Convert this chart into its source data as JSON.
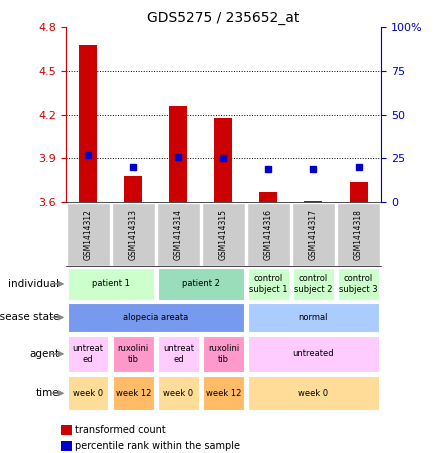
{
  "title": "GDS5275 / 235652_at",
  "samples": [
    "GSM1414312",
    "GSM1414313",
    "GSM1414314",
    "GSM1414315",
    "GSM1414316",
    "GSM1414317",
    "GSM1414318"
  ],
  "red_values": [
    4.68,
    3.78,
    4.26,
    4.18,
    3.67,
    3.61,
    3.74
  ],
  "blue_values_pct": [
    27,
    20,
    26,
    25,
    19,
    19,
    20
  ],
  "ylim": [
    3.6,
    4.8
  ],
  "y2lim": [
    0,
    100
  ],
  "yticks": [
    3.6,
    3.9,
    4.2,
    4.5,
    4.8
  ],
  "y2ticks": [
    0,
    25,
    50,
    75,
    100
  ],
  "red_color": "#cc0000",
  "blue_color": "#0000cc",
  "bar_width": 0.4,
  "rows": [
    {
      "label": "individual",
      "cells": [
        {
          "text": "patient 1",
          "span": 2,
          "color": "#ccffcc"
        },
        {
          "text": "patient 2",
          "span": 2,
          "color": "#99ddbb"
        },
        {
          "text": "control\nsubject 1",
          "span": 1,
          "color": "#ccffcc"
        },
        {
          "text": "control\nsubject 2",
          "span": 1,
          "color": "#ccffcc"
        },
        {
          "text": "control\nsubject 3",
          "span": 1,
          "color": "#ccffcc"
        }
      ]
    },
    {
      "label": "disease state",
      "cells": [
        {
          "text": "alopecia areata",
          "span": 4,
          "color": "#7799ee"
        },
        {
          "text": "normal",
          "span": 3,
          "color": "#aaccff"
        }
      ]
    },
    {
      "label": "agent",
      "cells": [
        {
          "text": "untreat\ned",
          "span": 1,
          "color": "#ffccff"
        },
        {
          "text": "ruxolini\ntib",
          "span": 1,
          "color": "#ff99cc"
        },
        {
          "text": "untreat\ned",
          "span": 1,
          "color": "#ffccff"
        },
        {
          "text": "ruxolini\ntib",
          "span": 1,
          "color": "#ff99cc"
        },
        {
          "text": "untreated",
          "span": 3,
          "color": "#ffccff"
        }
      ]
    },
    {
      "label": "time",
      "cells": [
        {
          "text": "week 0",
          "span": 1,
          "color": "#ffdd99"
        },
        {
          "text": "week 12",
          "span": 1,
          "color": "#ffbb66"
        },
        {
          "text": "week 0",
          "span": 1,
          "color": "#ffdd99"
        },
        {
          "text": "week 12",
          "span": 1,
          "color": "#ffbb66"
        },
        {
          "text": "week 0",
          "span": 3,
          "color": "#ffdd99"
        }
      ]
    }
  ],
  "legend_items": [
    {
      "color": "#cc0000",
      "label": "transformed count"
    },
    {
      "color": "#0000cc",
      "label": "percentile rank within the sample"
    }
  ],
  "sample_col_bg": "#cccccc"
}
